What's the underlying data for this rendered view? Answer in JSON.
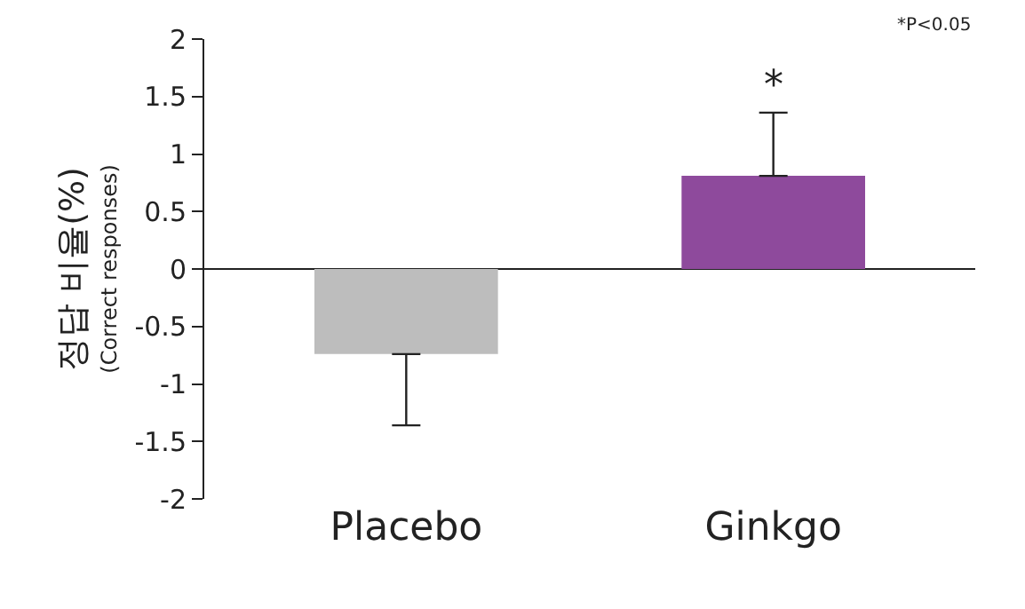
{
  "chart_data": {
    "type": "bar",
    "ylabel": "정답 비율(%)\n(Correct responses)",
    "categories": [
      "Placebo",
      "Ginkgo"
    ],
    "values": [
      -0.74,
      0.81
    ],
    "colors": [
      "#bdbdbd",
      "#8e4a9c"
    ],
    "errors": [
      [
        -1.36,
        -0.74
      ],
      [
        0.81,
        1.36
      ]
    ],
    "ylim": [
      -2,
      2
    ],
    "yticks": [
      -2,
      -1.5,
      -1,
      -0.5,
      0,
      0.5,
      1,
      1.5,
      2
    ],
    "annotations": [
      {
        "text": "*",
        "x": "Ginkgo",
        "y": 1.36
      },
      "*P<0.05"
    ]
  }
}
